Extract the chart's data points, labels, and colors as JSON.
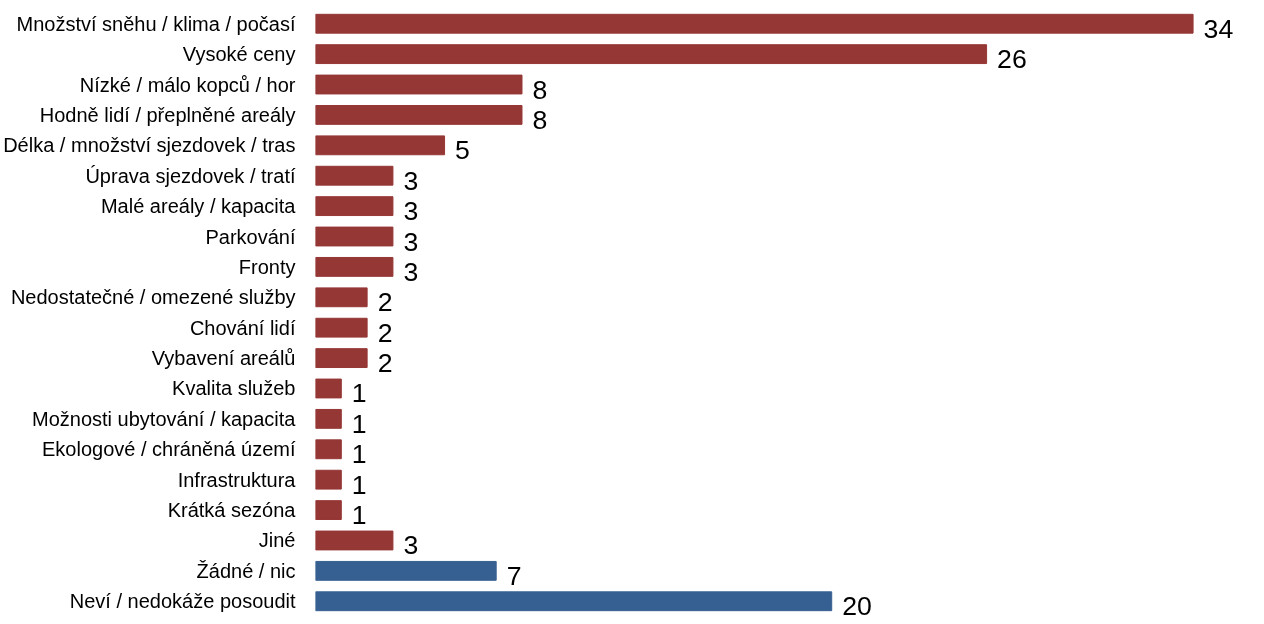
{
  "chart_data": {
    "type": "bar",
    "orientation": "horizontal",
    "data_labels": true,
    "categories": [
      "Množství sněhu / klima / počasí",
      "Vysoké ceny",
      "Nízké / málo kopců / hor",
      "Hodně lidí / přeplněné areály",
      "Délka / množství sjezdovek / tras",
      "Úprava sjezdovek / tratí",
      "Malé areály / kapacita",
      "Parkování",
      "Fronty",
      "Nedostatečné / omezené služby",
      "Chování lidí",
      "Vybavení areálů",
      "Kvalita služeb",
      "Možnosti ubytování / kapacita",
      "Ekologové / chráněná území",
      "Infrastruktura",
      "Krátká sezóna",
      "Jiné",
      "Žádné / nic",
      "Neví / nedokáže posoudit"
    ],
    "values": [
      34,
      26,
      8,
      8,
      5,
      3,
      3,
      3,
      3,
      2,
      2,
      2,
      1,
      1,
      1,
      1,
      1,
      3,
      7,
      20
    ],
    "colors": [
      "#953735",
      "#953735",
      "#953735",
      "#953735",
      "#953735",
      "#953735",
      "#953735",
      "#953735",
      "#953735",
      "#953735",
      "#953735",
      "#953735",
      "#953735",
      "#953735",
      "#953735",
      "#953735",
      "#953735",
      "#953735",
      "#376092",
      "#376092"
    ]
  }
}
